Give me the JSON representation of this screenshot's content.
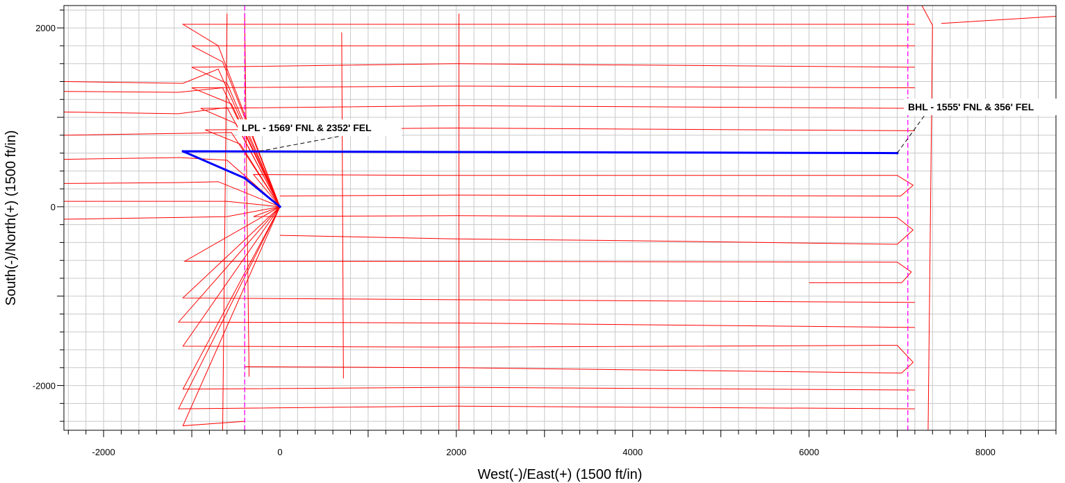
{
  "chart_data": {
    "type": "line",
    "title": "",
    "xlabel": "West(-)/East(+) (1500 ft/in)",
    "ylabel": "South(-)/North(+) (1500 ft/in)",
    "xlim": [
      -2450,
      8800
    ],
    "ylim": [
      -2500,
      2250
    ],
    "x_ticks": [
      -2000,
      0,
      2000,
      4000,
      6000,
      8000
    ],
    "y_ticks": [
      -2000,
      0,
      2000
    ],
    "x_tick_labels": [
      "-2000",
      "0",
      "2000",
      "4000",
      "6000",
      "8000"
    ],
    "y_tick_labels": [
      "-2000",
      "0",
      "2000"
    ],
    "grid": true,
    "grid_spacing": 200,
    "colors": {
      "offset_wells": "#ff0000",
      "planned_well": "#0000ff",
      "lease_lines": "#ff00ff",
      "grid": "#c8c8c8"
    },
    "lease_lines_x": [
      -400,
      7120
    ],
    "annotations": [
      {
        "text": "LPL - 1569' FNL & 2352' FEL",
        "x": -1100,
        "y": 620
      },
      {
        "text": "BHL - 1555' FNL & 356' FEL",
        "x": 7000,
        "y": 600
      }
    ],
    "series": [
      {
        "role": "planned",
        "color": "#0000ff",
        "points": [
          [
            0,
            0
          ],
          [
            -400,
            320
          ],
          [
            -1100,
            620
          ],
          [
            7000,
            600
          ]
        ]
      },
      {
        "role": "offset",
        "color": "#ff0000",
        "wells": [
          [
            [
              0,
              0
            ],
            [
              -700,
              1540
            ],
            [
              -1100,
              1380
            ],
            [
              -2450,
              1400
            ]
          ],
          [
            [
              0,
              0
            ],
            [
              -650,
              1330
            ],
            [
              -1150,
              1280
            ],
            [
              -2450,
              1290
            ]
          ],
          [
            [
              0,
              0
            ],
            [
              -600,
              1110
            ],
            [
              -1150,
              1040
            ],
            [
              -2450,
              1060
            ]
          ],
          [
            [
              0,
              0
            ],
            [
              -550,
              830
            ],
            [
              -1150,
              820
            ],
            [
              -2450,
              800
            ]
          ],
          [
            [
              0,
              0
            ],
            [
              -600,
              520
            ],
            [
              -1150,
              550
            ],
            [
              -2450,
              530
            ]
          ],
          [
            [
              0,
              0
            ],
            [
              -700,
              280
            ],
            [
              -1150,
              270
            ],
            [
              -2450,
              260
            ]
          ],
          [
            [
              0,
              0
            ],
            [
              -600,
              60
            ],
            [
              -1150,
              60
            ],
            [
              -2450,
              60
            ]
          ],
          [
            [
              0,
              0
            ],
            [
              -600,
              -110
            ],
            [
              -1150,
              -120
            ],
            [
              -2450,
              -140
            ]
          ],
          [
            [
              0,
              0
            ],
            [
              -700,
              1800
            ],
            [
              -1100,
              2040
            ],
            [
              7200,
              2040
            ]
          ],
          [
            [
              0,
              0
            ],
            [
              -650,
              1620
            ],
            [
              -1000,
              1800
            ],
            [
              7200,
              1800
            ]
          ],
          [
            [
              0,
              0
            ],
            [
              -600,
              1380
            ],
            [
              -1000,
              1560
            ],
            [
              2000,
              1600
            ],
            [
              7200,
              1560
            ]
          ],
          [
            [
              0,
              0
            ],
            [
              -550,
              1150
            ],
            [
              -1000,
              1330
            ],
            [
              2000,
              1350
            ],
            [
              7200,
              1330
            ]
          ],
          [
            [
              0,
              0
            ],
            [
              -500,
              930
            ],
            [
              -900,
              1100
            ],
            [
              2000,
              1130
            ],
            [
              7200,
              1100
            ]
          ],
          [
            [
              0,
              0
            ],
            [
              -450,
              700
            ],
            [
              -850,
              860
            ],
            [
              2000,
              880
            ],
            [
              7200,
              850
            ]
          ],
          [
            [
              0,
              0
            ],
            [
              -300,
              360
            ],
            [
              2000,
              350
            ],
            [
              7000,
              350
            ],
            [
              7180,
              240
            ],
            [
              7040,
              120
            ],
            [
              2000,
              130
            ],
            [
              0,
              120
            ]
          ],
          [
            [
              0,
              0
            ],
            [
              -300,
              -110
            ],
            [
              2000,
              -100
            ],
            [
              7000,
              -120
            ],
            [
              7180,
              -260
            ],
            [
              7000,
              -420
            ],
            [
              4000,
              -380
            ],
            [
              2000,
              -360
            ],
            [
              0,
              -320
            ]
          ],
          [
            [
              0,
              0
            ],
            [
              -1080,
              -610
            ],
            [
              2000,
              -610
            ],
            [
              7000,
              -620
            ],
            [
              7160,
              -730
            ],
            [
              7050,
              -850
            ],
            [
              6000,
              -850
            ]
          ],
          [
            [
              0,
              0
            ],
            [
              -1100,
              -1020
            ],
            [
              2000,
              -1040
            ],
            [
              7200,
              -1070
            ]
          ],
          [
            [
              0,
              0
            ],
            [
              -1150,
              -1290
            ],
            [
              2000,
              -1300
            ],
            [
              7200,
              -1350
            ]
          ],
          [
            [
              0,
              0
            ],
            [
              -1100,
              -1560
            ],
            [
              2000,
              -1570
            ],
            [
              7000,
              -1550
            ],
            [
              7180,
              -1740
            ],
            [
              7050,
              -1860
            ],
            [
              2000,
              -1800
            ],
            [
              -400,
              -1790
            ]
          ],
          [
            [
              0,
              0
            ],
            [
              -1100,
              -2040
            ],
            [
              2000,
              -2020
            ],
            [
              7200,
              -2050
            ]
          ],
          [
            [
              0,
              0
            ],
            [
              -1150,
              -2260
            ],
            [
              2000,
              -2230
            ],
            [
              7200,
              -2260
            ]
          ],
          [
            [
              0,
              0
            ],
            [
              -1100,
              -2450
            ],
            [
              -400,
              -2400
            ]
          ],
          [
            [
              -600,
              2160
            ],
            [
              -650,
              -2500
            ]
          ],
          [
            [
              -400,
              2160
            ],
            [
              -350,
              -1900
            ]
          ],
          [
            [
              700,
              1950
            ],
            [
              720,
              -1920
            ]
          ],
          [
            [
              2030,
              2160
            ],
            [
              2030,
              -2500
            ]
          ],
          [
            [
              7280,
              2250
            ],
            [
              7400,
              2030
            ],
            [
              7350,
              -2500
            ]
          ],
          [
            [
              7500,
              2050
            ],
            [
              8800,
              2130
            ]
          ]
        ]
      }
    ]
  }
}
